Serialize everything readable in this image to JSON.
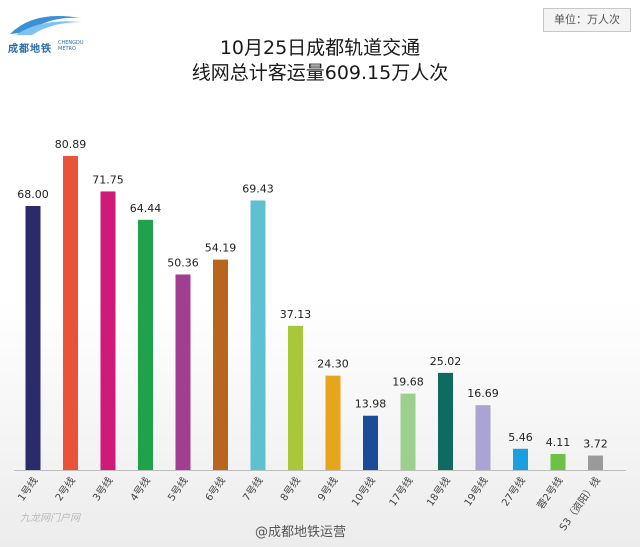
{
  "logo": {
    "text": "成都地铁",
    "en": "CHENGDU METRO"
  },
  "unit_label": "单位：万人次",
  "title_line1": "10月25日成都轨道交通",
  "title_line2": "线网总计客运量609.15万人次",
  "watermark_left": "九龙网门户网",
  "watermark_weibo": "@成都地铁运营",
  "chart_data": {
    "type": "bar",
    "categories": [
      "1号线",
      "2号线",
      "3号线",
      "4号线",
      "5号线",
      "6号线",
      "7号线",
      "8号线",
      "9号线",
      "10号线",
      "17号线",
      "18号线",
      "19号线",
      "27号线",
      "蓉2号线",
      "S3（资阳）线"
    ],
    "values": [
      68.0,
      80.89,
      71.75,
      64.44,
      50.36,
      54.19,
      69.43,
      37.13,
      24.3,
      13.98,
      19.68,
      25.02,
      16.69,
      5.46,
      4.11,
      3.72
    ],
    "value_labels": [
      "68.00",
      "80.89",
      "71.75",
      "64.44",
      "50.36",
      "54.19",
      "69.43",
      "37.13",
      "24.30",
      "13.98",
      "19.68",
      "25.02",
      "16.69",
      "5.46",
      "4.11",
      "3.72"
    ],
    "colors": [
      "#2b2a6b",
      "#e8533a",
      "#cf1a78",
      "#1fa24c",
      "#a13e8f",
      "#b8661d",
      "#5dc1cf",
      "#a8c83a",
      "#e7a51c",
      "#1a4c97",
      "#9cd08e",
      "#0f6a61",
      "#a9a4d3",
      "#1aa0de",
      "#6dc144",
      "#9a9a9a"
    ],
    "ylim": [
      0,
      85
    ],
    "title": "10月25日成都轨道交通 线网总计客运量609.15万人次"
  }
}
